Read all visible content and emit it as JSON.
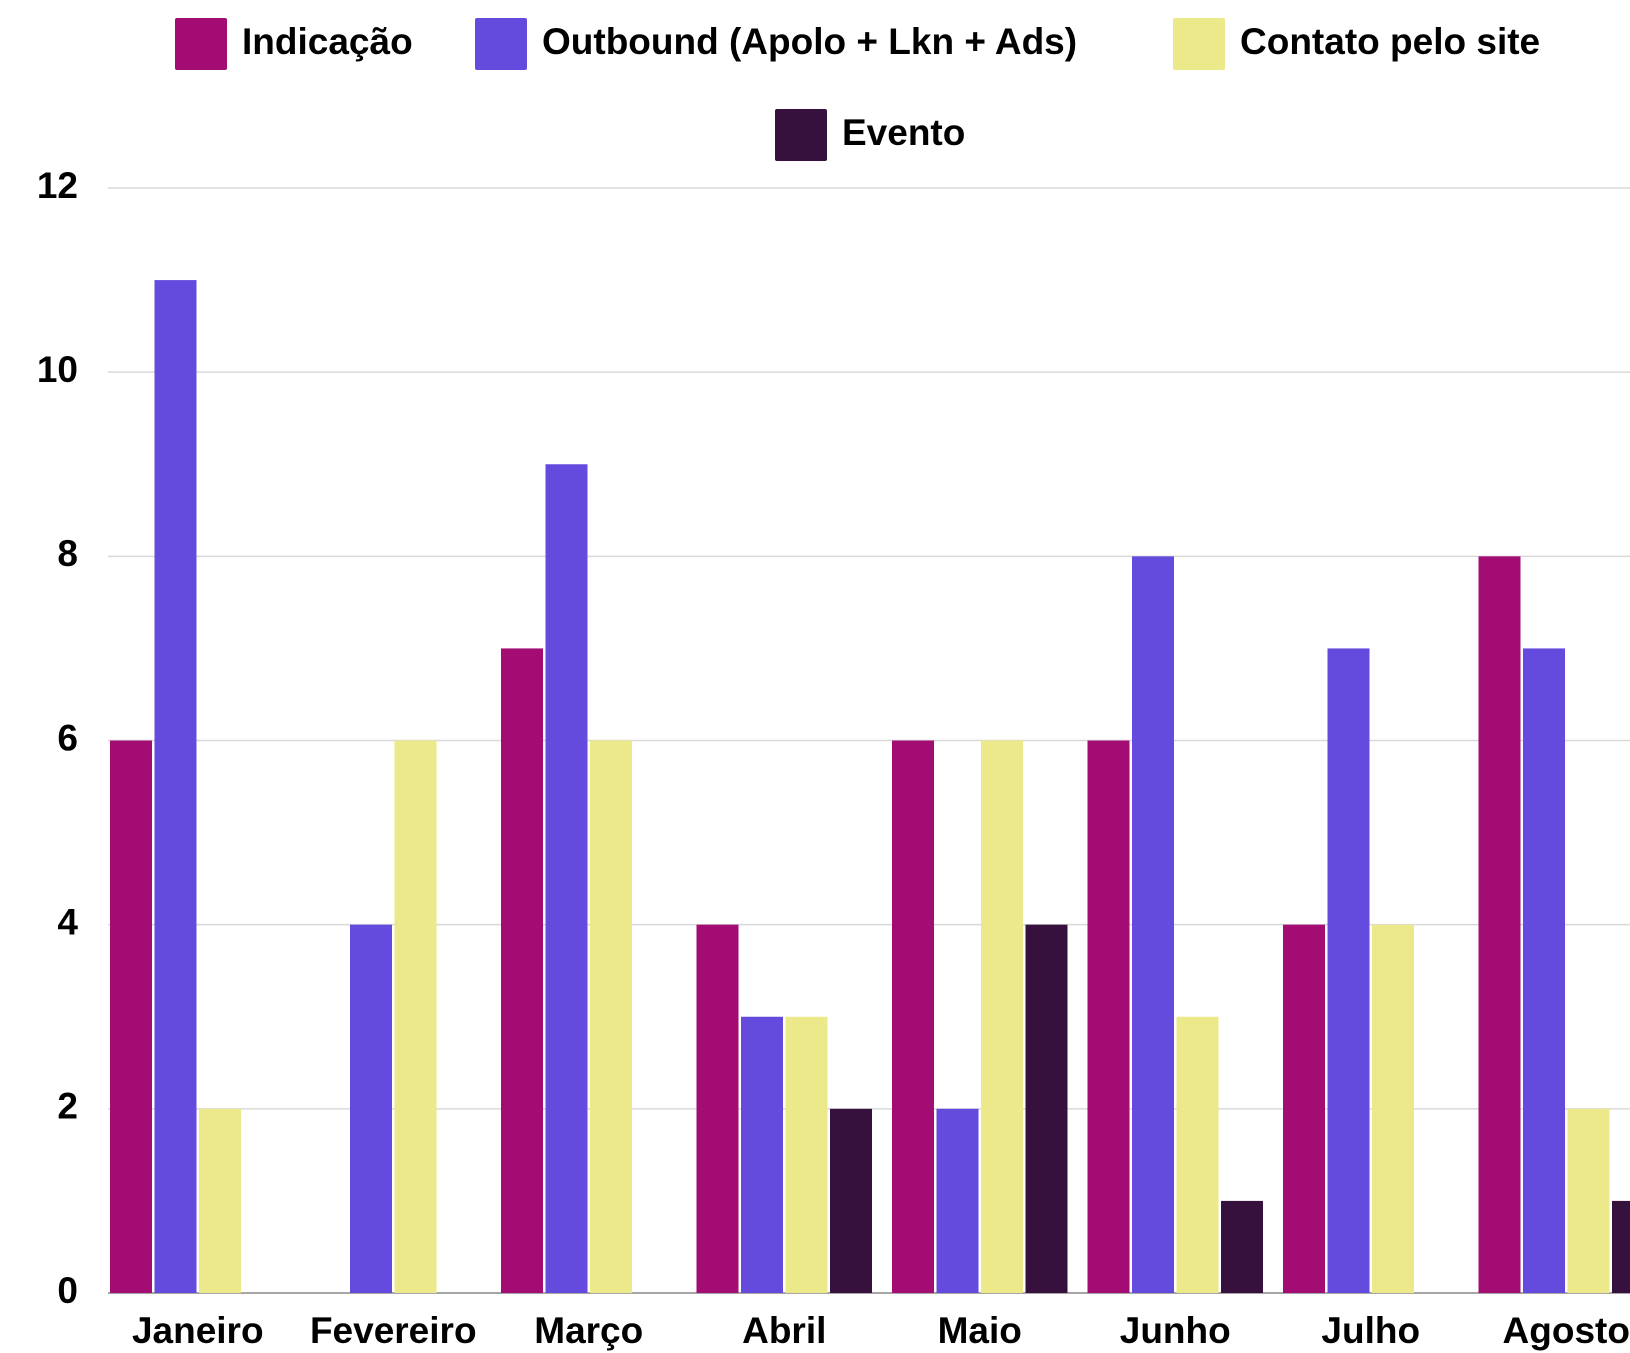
{
  "chart_data": {
    "type": "bar",
    "categories": [
      "Janeiro",
      "Fevereiro",
      "Março",
      "Abril",
      "Maio",
      "Junho",
      "Julho",
      "Agosto"
    ],
    "series": [
      {
        "name": "Indicação",
        "color": "#a30d73",
        "values": [
          6,
          0,
          7,
          4,
          6,
          6,
          4,
          8
        ]
      },
      {
        "name": "Outbound (Apolo + Lkn + Ads)",
        "color": "#654bdd",
        "values": [
          11,
          4,
          9,
          3,
          2,
          8,
          7,
          7
        ]
      },
      {
        "name": "Contato pelo site",
        "color": "#ece98a",
        "values": [
          2,
          6,
          6,
          3,
          6,
          3,
          4,
          2
        ]
      },
      {
        "name": "Evento",
        "color": "#36113d",
        "values": [
          0,
          0,
          0,
          2,
          4,
          1,
          0,
          1
        ]
      }
    ],
    "ylim": [
      0,
      12
    ],
    "yticks": [
      0,
      2,
      4,
      6,
      8,
      10,
      12
    ],
    "grid": true,
    "legend": "top"
  }
}
